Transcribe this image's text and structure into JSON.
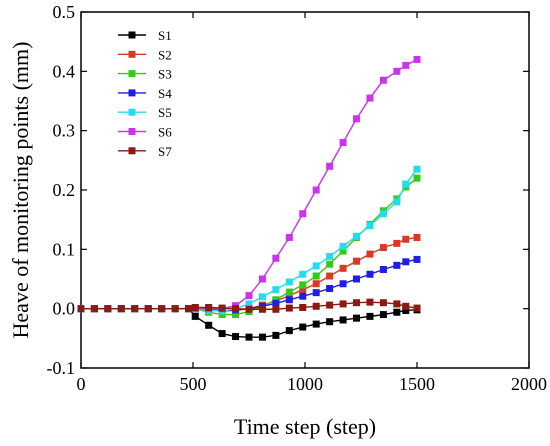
{
  "chart_data": {
    "type": "line",
    "title": "",
    "xlabel": "Time step (step)",
    "ylabel": "Heave of monitoring points (mm)",
    "xlim": [
      0,
      2000
    ],
    "ylim": [
      -0.1,
      0.5
    ],
    "xticks": [
      0,
      500,
      1000,
      1500,
      2000
    ],
    "yticks": [
      -0.1,
      0.0,
      0.1,
      0.2,
      0.3,
      0.4,
      0.5
    ],
    "xtick_labels": [
      "0",
      "500",
      "1000",
      "1500",
      "2000"
    ],
    "ytick_labels": [
      "-0.1",
      "0.0",
      "0.1",
      "0.2",
      "0.3",
      "0.4",
      "0.5"
    ],
    "grid": false,
    "legend_position": "top-left",
    "marker": "square",
    "x": [
      0,
      60,
      120,
      180,
      240,
      300,
      360,
      420,
      480,
      510,
      570,
      630,
      690,
      750,
      810,
      870,
      930,
      990,
      1050,
      1110,
      1170,
      1230,
      1290,
      1350,
      1410,
      1450,
      1500
    ],
    "series": [
      {
        "name": "S1",
        "color": "#000000",
        "values": [
          0,
          0,
          0,
          0,
          0,
          0,
          0,
          0,
          0,
          -0.013,
          -0.028,
          -0.042,
          -0.047,
          -0.048,
          -0.048,
          -0.045,
          -0.037,
          -0.031,
          -0.026,
          -0.022,
          -0.019,
          -0.016,
          -0.013,
          -0.01,
          -0.006,
          -0.003,
          -0.002
        ]
      },
      {
        "name": "S2",
        "color": "#d93a26",
        "values": [
          0,
          0,
          0,
          0,
          0,
          0,
          0,
          0,
          0,
          0,
          -0.002,
          -0.004,
          -0.003,
          0.0,
          0.006,
          0.013,
          0.022,
          0.032,
          0.042,
          0.055,
          0.068,
          0.08,
          0.092,
          0.103,
          0.11,
          0.117,
          0.12
        ]
      },
      {
        "name": "S3",
        "color": "#33cc11",
        "values": [
          0,
          0,
          0,
          0,
          0,
          0,
          0,
          0,
          0,
          0,
          -0.006,
          -0.01,
          -0.01,
          -0.005,
          0.004,
          0.015,
          0.028,
          0.04,
          0.055,
          0.075,
          0.097,
          0.12,
          0.142,
          0.165,
          0.185,
          0.205,
          0.22
        ]
      },
      {
        "name": "S4",
        "color": "#1e1ee6",
        "values": [
          0,
          0,
          0,
          0,
          0,
          0,
          0,
          0,
          0,
          0,
          -0.002,
          -0.003,
          -0.002,
          0.0,
          0.004,
          0.009,
          0.015,
          0.021,
          0.027,
          0.034,
          0.042,
          0.05,
          0.058,
          0.066,
          0.073,
          0.079,
          0.083
        ]
      },
      {
        "name": "S5",
        "color": "#22ddee",
        "values": [
          0,
          0,
          0,
          0,
          0,
          0,
          0,
          0,
          0,
          0,
          -0.003,
          -0.004,
          0.0,
          0.008,
          0.02,
          0.032,
          0.045,
          0.058,
          0.072,
          0.088,
          0.105,
          0.122,
          0.14,
          0.16,
          0.18,
          0.21,
          0.235
        ]
      },
      {
        "name": "S6",
        "color": "#cc33ee",
        "values": [
          0,
          0,
          0,
          0,
          0,
          0,
          0,
          0,
          0,
          0,
          0.0,
          0.0,
          0.005,
          0.022,
          0.05,
          0.085,
          0.12,
          0.16,
          0.2,
          0.24,
          0.28,
          0.32,
          0.355,
          0.385,
          0.4,
          0.41,
          0.42
        ]
      },
      {
        "name": "S7",
        "color": "#8b1a10",
        "values": [
          0,
          0,
          0,
          0,
          0,
          0,
          0,
          0,
          0,
          0.002,
          0.002,
          0.001,
          0.0,
          -0.001,
          -0.001,
          -0.001,
          0.001,
          0.002,
          0.004,
          0.006,
          0.008,
          0.01,
          0.011,
          0.01,
          0.008,
          0.004,
          0.001
        ]
      }
    ]
  }
}
